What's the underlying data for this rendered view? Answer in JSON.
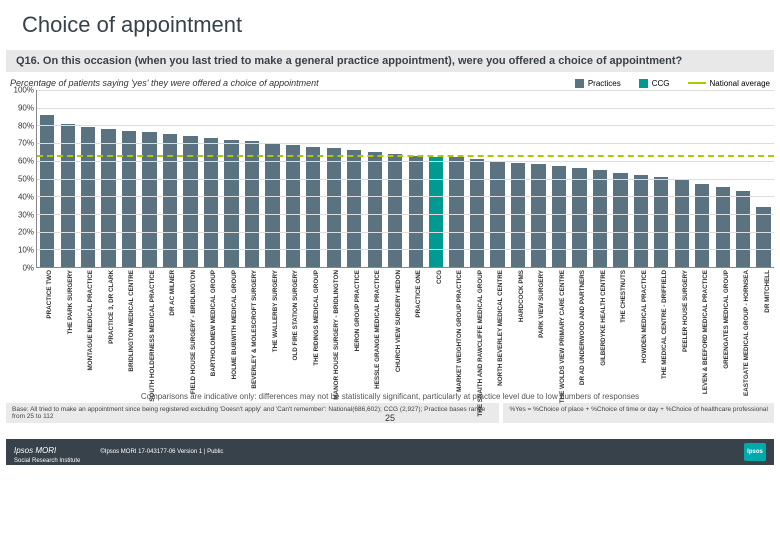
{
  "title": "Choice of appointment",
  "subtitle": "Q16. On this occasion (when you last tried to make a general practice appointment), were you offered a choice of appointment?",
  "chart_desc": "Percentage of patients saying 'yes' they were offered a choice of appointment",
  "legend": {
    "practices": "Practices",
    "ccg": "CCG",
    "national": "National average"
  },
  "colors": {
    "practices": "#5b7380",
    "ccg": "#009a93",
    "national": "#b0c800",
    "grid": "#dddddd",
    "title": "#37424a",
    "bottom_bar": "#37424a"
  },
  "chart": {
    "type": "bar",
    "ylim": [
      0,
      100
    ],
    "ytick_step": 10,
    "ylabel_fmt": "%",
    "national_value": 62,
    "label_fontsize": 6.3,
    "tick_fontsize": 8,
    "categories": [
      {
        "label": "PRACTICE TWO",
        "value": 86,
        "kind": "practice"
      },
      {
        "label": "THE PARK SURGERY",
        "value": 81,
        "kind": "practice"
      },
      {
        "label": "MONTAGUE MEDICAL PRACTICE",
        "value": 79,
        "kind": "practice"
      },
      {
        "label": "PRACTICE 3, DR CLARK",
        "value": 78,
        "kind": "practice"
      },
      {
        "label": "BRIDLINGTON MEDICAL CENTRE",
        "value": 77,
        "kind": "practice"
      },
      {
        "label": "SOUTH HOLDERNESS MEDICAL PRACTICE",
        "value": 76,
        "kind": "practice"
      },
      {
        "label": "DR AC MILNER",
        "value": 75,
        "kind": "practice"
      },
      {
        "label": "FIELD HOUSE SURGERY - BRIDLINGTON",
        "value": 74,
        "kind": "practice"
      },
      {
        "label": "BARTHOLOMEW MEDICAL GROUP",
        "value": 73,
        "kind": "practice"
      },
      {
        "label": "HOLME BUBWITH MEDICAL GROUP",
        "value": 72,
        "kind": "practice"
      },
      {
        "label": "BEVERLEY & MOLESCROFT SURGERY",
        "value": 71,
        "kind": "practice"
      },
      {
        "label": "THE WALLERBY SURGERY",
        "value": 70,
        "kind": "practice"
      },
      {
        "label": "OLD FIRE STATION SURGERY",
        "value": 69,
        "kind": "practice"
      },
      {
        "label": "THE RIDINGS MEDICAL GROUP",
        "value": 68,
        "kind": "practice"
      },
      {
        "label": "MANOR HOUSE SURGERY - BRIDLINGTON",
        "value": 67,
        "kind": "practice"
      },
      {
        "label": "HERON GROUP PRACTICE",
        "value": 66,
        "kind": "practice"
      },
      {
        "label": "HESSLE GRANGE MEDICAL PRACTICE",
        "value": 65,
        "kind": "practice"
      },
      {
        "label": "CHURCH VIEW SURGERY HEDON",
        "value": 64,
        "kind": "practice"
      },
      {
        "label": "PRACTICE ONE",
        "value": 63,
        "kind": "practice"
      },
      {
        "label": "CCG",
        "value": 62,
        "kind": "ccg"
      },
      {
        "label": "MARKET WEIGHTON GROUP PRACTICE",
        "value": 62,
        "kind": "practice"
      },
      {
        "label": "THE SNAITH AND RAWCLIFFE MEDICAL GROUP",
        "value": 61,
        "kind": "practice"
      },
      {
        "label": "NORTH BEVERLEY MEDICAL CENTRE",
        "value": 60,
        "kind": "practice"
      },
      {
        "label": "HARDCOCK PMS",
        "value": 59,
        "kind": "practice"
      },
      {
        "label": "PARK VIEW SURGERY",
        "value": 58,
        "kind": "practice"
      },
      {
        "label": "THE WOLDS VIEW PRIMARY CARE CENTRE",
        "value": 57,
        "kind": "practice"
      },
      {
        "label": "DR AD UNDERWOOD AND PARTNERS",
        "value": 56,
        "kind": "practice"
      },
      {
        "label": "GILBERDYKE HEALTH CENTRE",
        "value": 55,
        "kind": "practice"
      },
      {
        "label": "THE CHESTNUTS",
        "value": 53,
        "kind": "practice"
      },
      {
        "label": "HOWDEN MEDICAL PRACTICE",
        "value": 52,
        "kind": "practice"
      },
      {
        "label": "THE MEDICAL CENTRE - DRIFFIELD",
        "value": 51,
        "kind": "practice"
      },
      {
        "label": "PEELER HOUSE SURGERY",
        "value": 49,
        "kind": "practice"
      },
      {
        "label": "LEVEN & BEEFORD MEDICAL PRACTICE",
        "value": 47,
        "kind": "practice"
      },
      {
        "label": "GREENGATES MEDICAL GROUP",
        "value": 45,
        "kind": "practice"
      },
      {
        "label": "EASTGATE MEDICAL GROUP - HORNSEA",
        "value": 43,
        "kind": "practice"
      },
      {
        "label": "DR MITCHELL",
        "value": 34,
        "kind": "practice"
      }
    ]
  },
  "footnote": "Comparisons are indicative only: differences may not be statistically significant, particularly at practice level due to low numbers of responses",
  "foot_left": "Base: All tried to make an appointment since being registered excluding 'Doesn't apply' and 'Can't remember': National(686,602); CCG (2,927); Practice bases range from 25 to 112",
  "foot_right": "%Yes = %Choice of place + %Choice of time or day + %Choice of healthcare professional",
  "page_num": "25",
  "mori": "Ipsos MORI",
  "mori_sub": "Social Research Institute",
  "copy": "©Ipsos MORI    17-043177-06 Version 1 | Public",
  "ipsos": "Ipsos"
}
